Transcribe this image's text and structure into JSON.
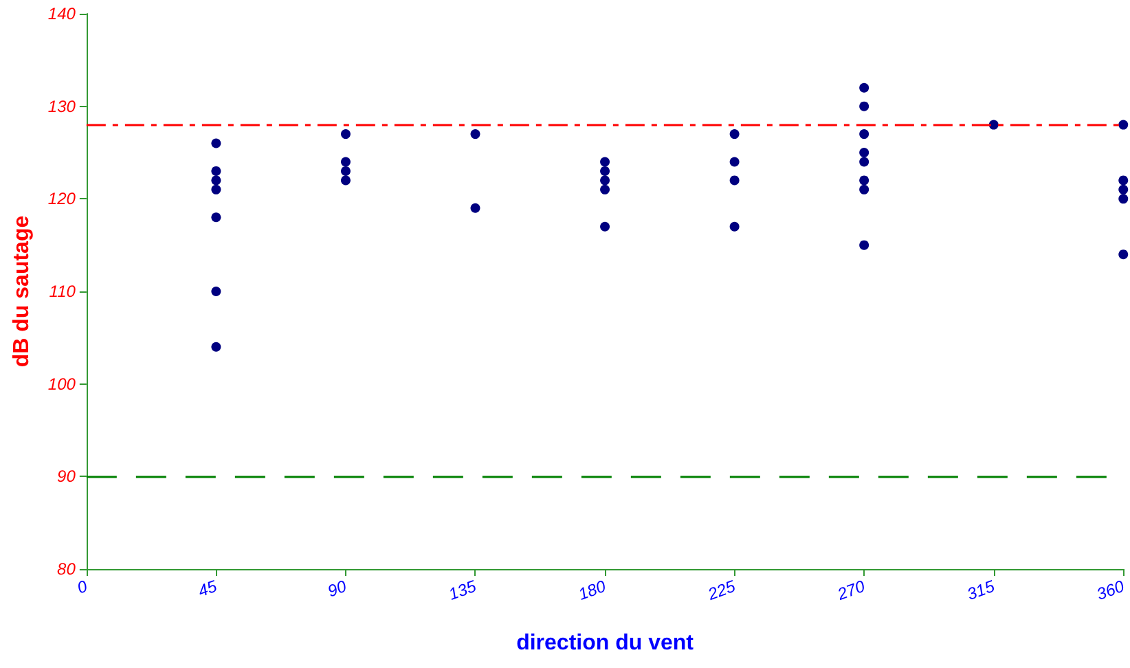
{
  "chart_data": {
    "type": "scatter",
    "xlabel": "direction du vent",
    "ylabel": "dB du sautage",
    "xlim": [
      0,
      360
    ],
    "xticks": [
      0,
      45,
      90,
      135,
      180,
      225,
      270,
      315,
      360
    ],
    "ylim": [
      80,
      140
    ],
    "yticks": [
      80,
      90,
      100,
      110,
      120,
      130,
      140
    ],
    "grid": false,
    "marker": "circle",
    "series": [
      {
        "color": "#000080",
        "x": [
          45,
          45,
          45,
          45,
          45,
          45,
          45,
          90,
          90,
          90,
          90,
          135,
          135,
          180,
          180,
          180,
          180,
          180,
          225,
          225,
          225,
          225,
          270,
          270,
          270,
          270,
          270,
          270,
          270,
          270,
          315,
          360,
          360,
          360,
          360,
          360
        ],
        "values": [
          126,
          123,
          122,
          121,
          118,
          110,
          104,
          127,
          124,
          123,
          122,
          127,
          119,
          124,
          123,
          122,
          121,
          117,
          127,
          124,
          122,
          117,
          132,
          130,
          127,
          125,
          124,
          122,
          121,
          115,
          128,
          128,
          122,
          121,
          120,
          114
        ]
      }
    ],
    "ref_lines": [
      {
        "axis": "y",
        "value": 128,
        "color": "#ff0000",
        "line_style": "dashdot"
      },
      {
        "axis": "y",
        "value": 90,
        "color": "#008000",
        "line_style": "dashed"
      }
    ]
  }
}
